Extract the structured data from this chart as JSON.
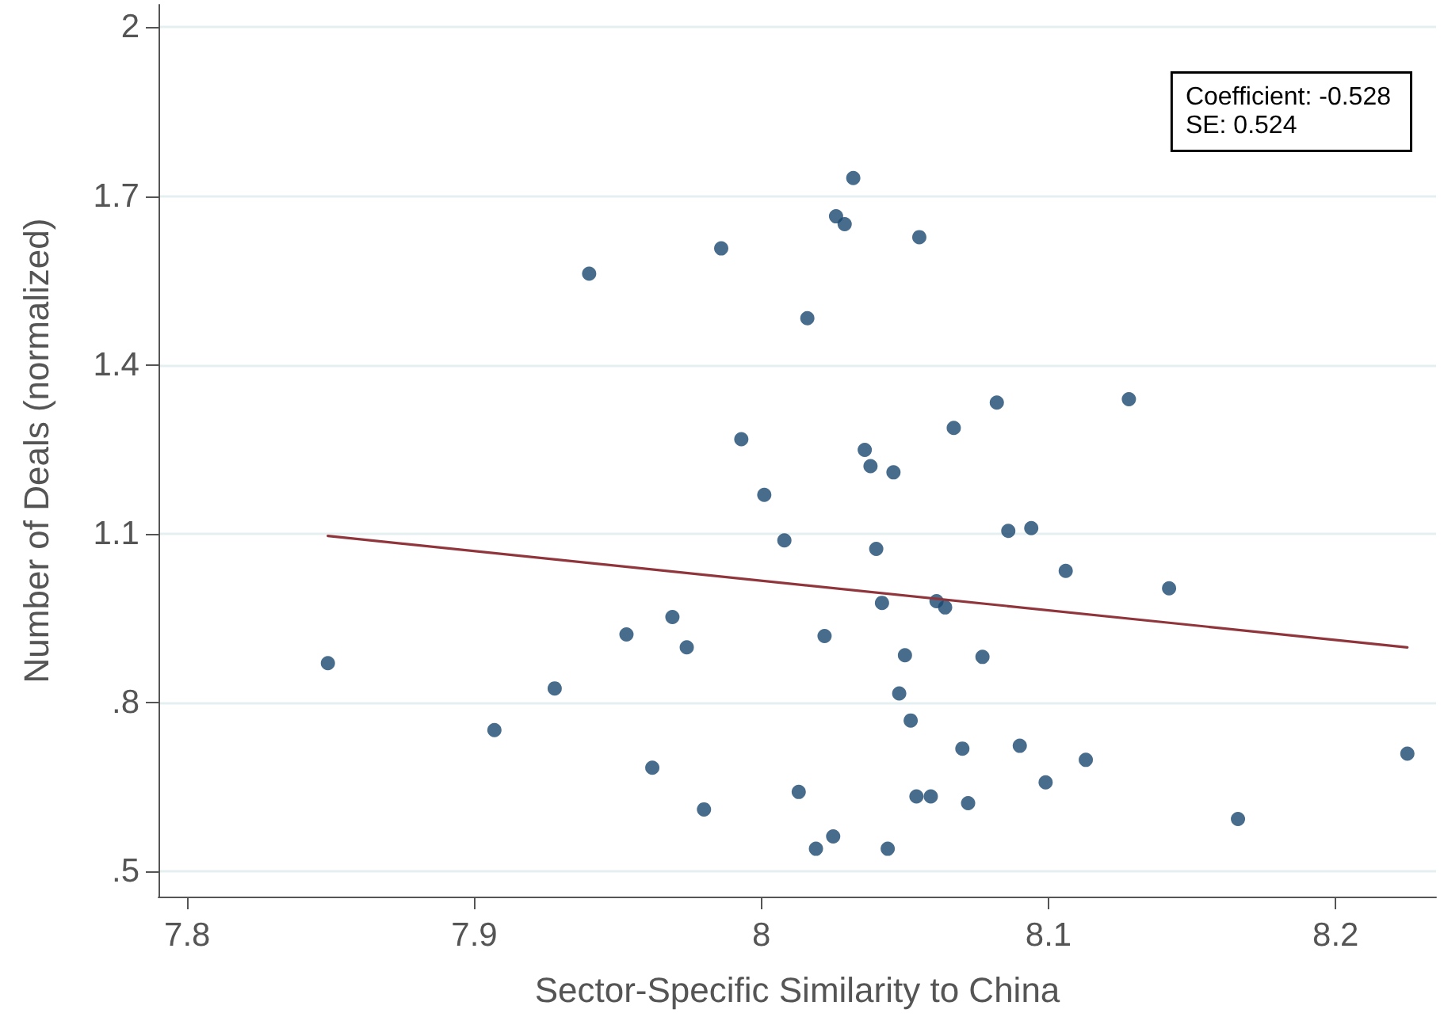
{
  "chart_data": {
    "type": "scatter",
    "xlabel": "Sector-Specific Similarity to China",
    "ylabel": "Number of Deals (normalized)",
    "annotations": [
      "Coefficient: -0.528\nSE: 0.524"
    ],
    "xlim": [
      7.79,
      8.235
    ],
    "xticks": [
      7.8,
      7.9,
      8,
      8.1,
      8.2
    ],
    "ylim": [
      0.455,
      2.04
    ],
    "yticks": [
      {
        "value": 0.5,
        "label": ".5"
      },
      {
        "value": 0.8,
        "label": ".8"
      },
      1.1,
      1.4,
      1.7,
      2
    ],
    "grid": "y",
    "marker": "circle",
    "series": [
      {
        "color": "#1a476f",
        "x": [
          7.849,
          7.907,
          7.928,
          7.94,
          7.953,
          7.962,
          7.969,
          7.974,
          7.98,
          7.986,
          7.993,
          8.001,
          8.008,
          8.013,
          8.016,
          8.019,
          8.022,
          8.025,
          8.026,
          8.029,
          8.032,
          8.036,
          8.038,
          8.04,
          8.042,
          8.044,
          8.046,
          8.048,
          8.05,
          8.052,
          8.054,
          8.055,
          8.059,
          8.061,
          8.064,
          8.067,
          8.07,
          8.072,
          8.077,
          8.082,
          8.086,
          8.09,
          8.094,
          8.099,
          8.106,
          8.113,
          8.128,
          8.142,
          8.166,
          8.225
        ],
        "values": [
          0.87,
          0.751,
          0.825,
          1.562,
          0.921,
          0.684,
          0.952,
          0.898,
          0.61,
          1.607,
          1.268,
          1.169,
          1.088,
          0.641,
          1.483,
          0.54,
          0.918,
          0.562,
          1.664,
          1.65,
          1.732,
          1.249,
          1.22,
          1.073,
          0.977,
          0.54,
          1.209,
          0.816,
          0.884,
          0.768,
          0.633,
          1.627,
          0.633,
          0.98,
          0.969,
          1.288,
          0.718,
          0.621,
          0.881,
          1.333,
          1.105,
          0.723,
          1.11,
          0.658,
          1.034,
          0.698,
          1.339,
          1.003,
          0.593,
          0.709
        ]
      },
      {
        "type": "line",
        "color": "#90353b",
        "marker": "none",
        "x": [
          7.849,
          8.225
        ],
        "values": [
          1.096,
          0.898
        ]
      }
    ]
  }
}
